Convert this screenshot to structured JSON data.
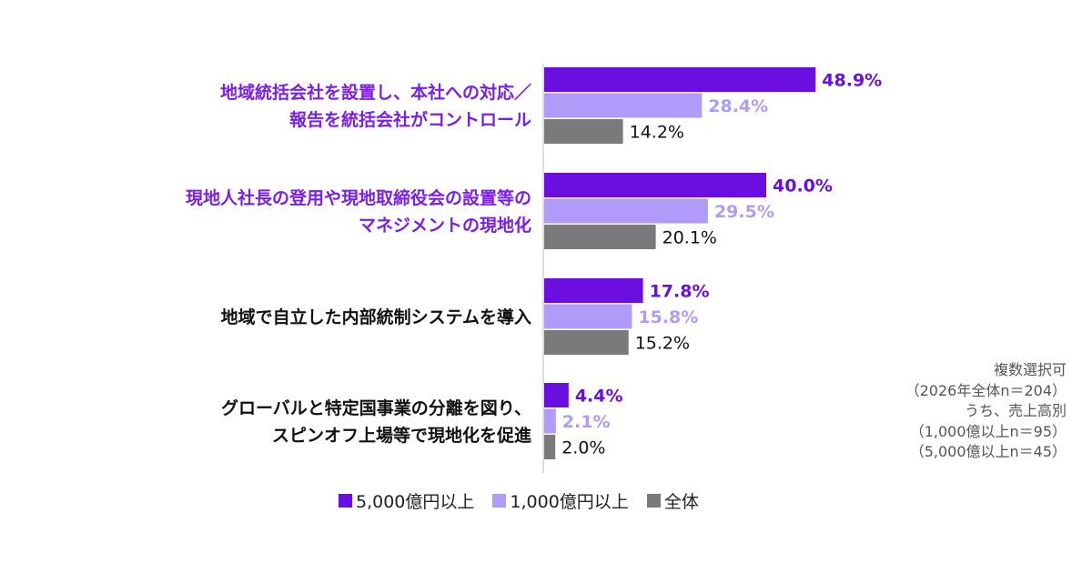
{
  "chart_data": {
    "type": "bar",
    "orientation": "horizontal",
    "categories": [
      [
        "地域統括会社を設置し、本社への対応／",
        "報告を統括会社がコントロール"
      ],
      [
        "現地人社長の登用や現地取締役会の設置等の",
        "マネジメントの現地化"
      ],
      [
        "地域で自立した内部統制システムを導入"
      ],
      [
        "グローバルと特定国事業の分離を図り、",
        "スピンオフ上場等で現地化を促進"
      ]
    ],
    "category_highlight": [
      true,
      true,
      false,
      false
    ],
    "series": [
      {
        "name": "5,000億円以上",
        "values": [
          48.9,
          40.0,
          17.8,
          4.4
        ],
        "labels": [
          "48.9%",
          "40.0%",
          "17.8%",
          "4.4%"
        ]
      },
      {
        "name": "1,000億円以上",
        "values": [
          28.4,
          29.5,
          15.8,
          2.1
        ],
        "labels": [
          "28.4%",
          "29.5%",
          "15.8%",
          "2.1%"
        ]
      },
      {
        "name": "全体",
        "values": [
          14.2,
          20.1,
          15.2,
          2.0
        ],
        "labels": [
          "14.2%",
          "20.1%",
          "15.2%",
          "2.0%"
        ]
      }
    ],
    "xlim": [
      0,
      50
    ],
    "grid": false,
    "legend_position": "bottom"
  },
  "colors": {
    "series": [
      "#6a0fe0",
      "#b09cf8",
      "#7a7a7a"
    ],
    "labels": [
      "#6a0fe0",
      "#b09cf8",
      "#111111"
    ],
    "highlight_text": "#7a1fe6",
    "normal_text": "#111111",
    "axis": "#bbbbbb"
  },
  "notes": [
    "複数選択可",
    "（2026年全体n＝204）",
    "うち、売上高別",
    "（1,000億以上n＝95）",
    "（5,000億以上n＝45）"
  ]
}
